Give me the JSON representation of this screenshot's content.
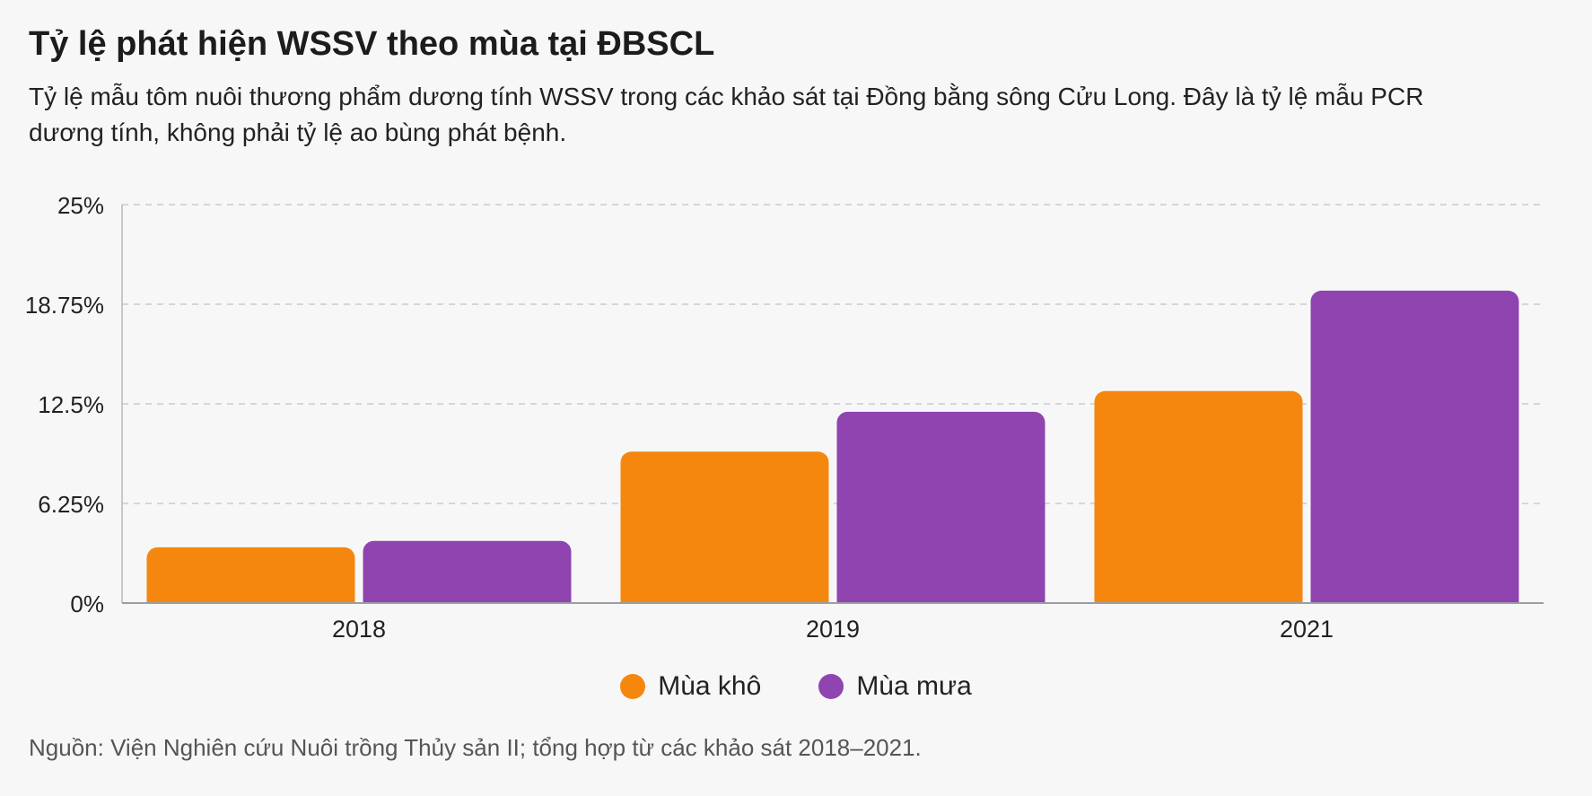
{
  "header": {
    "title": "Tỷ lệ phát hiện WSSV theo mùa tại ĐBSCL",
    "subtitle": "Tỷ lệ mẫu tôm nuôi thương phẩm dương tính WSSV trong các khảo sát tại Đồng bằng sông Cửu Long. Đây là tỷ lệ mẫu PCR dương tính, không phải tỷ lệ ao bùng phát bệnh."
  },
  "chart_data": {
    "type": "bar",
    "title": "Tỷ lệ phát hiện WSSV theo mùa tại ĐBSCL",
    "categories": [
      "2018",
      "2019",
      "2021"
    ],
    "series": [
      {
        "name": "Mùa khô",
        "values": [
          3.5,
          9.5,
          13.3
        ],
        "color": "#f5870f"
      },
      {
        "name": "Mùa mưa",
        "values": [
          3.9,
          12.0,
          19.6
        ],
        "color": "#8f44b0"
      }
    ],
    "ylim": [
      0,
      25
    ],
    "yticks": [
      "0%",
      "6.25%",
      "12.5%",
      "18.75%",
      "25%"
    ],
    "ytick_values": [
      0,
      6.25,
      12.5,
      18.75,
      25
    ],
    "grid": true,
    "legend_position": "bottom"
  },
  "legend": {
    "items": [
      {
        "label": "Mùa khô",
        "color": "#f5870f"
      },
      {
        "label": "Mùa mưa",
        "color": "#8f44b0"
      }
    ]
  },
  "footer": {
    "source": "Nguồn: Viện Nghiên cứu Nuôi trồng Thủy sản II; tổng hợp từ các khảo sát 2018–2021."
  }
}
